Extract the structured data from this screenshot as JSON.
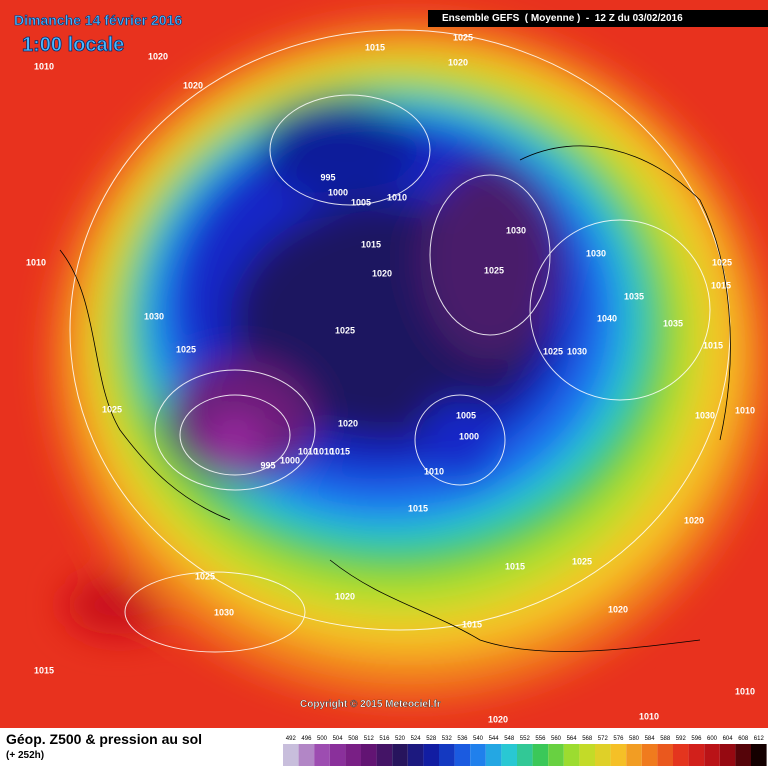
{
  "header": {
    "date": "Dimanche 14 février 2016",
    "local_time": "1:00 locale",
    "run_info": "Ensemble GEFS  ( Moyenne )  -  12 Z du 03/02/2016"
  },
  "isobar_labels": [
    "1015",
    "1025",
    "1020",
    "1010",
    "1020",
    "1020",
    "995",
    "1000",
    "1005",
    "1010",
    "1030",
    "1015",
    "1025",
    "1030",
    "1025",
    "1015",
    "1010",
    "1020",
    "1035",
    "1030",
    "1025",
    "1040",
    "1035",
    "1025",
    "1025",
    "1030",
    "1015",
    "1025",
    "1005",
    "1030",
    "1010",
    "1020",
    "1000",
    "1010",
    "1010",
    "1015",
    "1000",
    "995",
    "1010",
    "1015",
    "1020",
    "1025",
    "1015",
    "1025",
    "1020",
    "1030",
    "1015",
    "1020",
    "1015",
    "1010",
    "1010",
    "1020"
  ],
  "copyright": "Copyright © 2015 Meteociel.fr",
  "footer": {
    "title": "Géop. Z500 & pression au sol",
    "lead": "(+ 252h)"
  },
  "legend": {
    "labels": [
      492,
      496,
      500,
      504,
      508,
      512,
      516,
      520,
      524,
      528,
      532,
      536,
      540,
      544,
      548,
      552,
      556,
      560,
      564,
      568,
      572,
      576,
      580,
      584,
      588,
      592,
      596,
      600,
      604,
      608,
      612
    ]
  }
}
